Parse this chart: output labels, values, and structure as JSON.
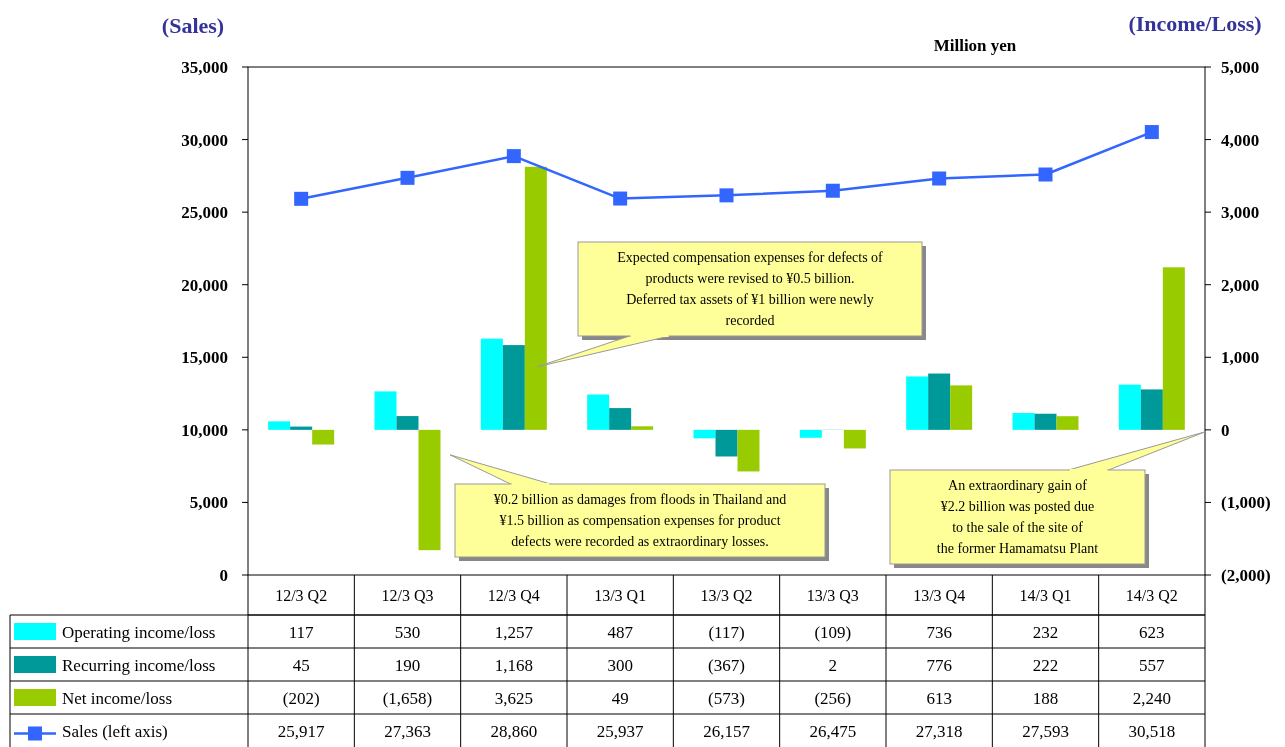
{
  "chart_data": {
    "type": "bar",
    "subtitle": "Million yen",
    "ylabel": "(Sales)",
    "y2label": "(Income/Loss)",
    "categories": [
      "12/3 Q2",
      "12/3 Q3",
      "12/3 Q4",
      "13/3 Q1",
      "13/3 Q2",
      "13/3 Q3",
      "13/3 Q4",
      "14/3 Q1",
      "14/3 Q2"
    ],
    "series": [
      {
        "name": "Operating income/loss",
        "color": "#00ffff",
        "axis": "y2",
        "values": [
          117,
          530,
          1257,
          487,
          -117,
          -109,
          736,
          232,
          623
        ],
        "value_labels": [
          "117",
          "530",
          "1,257",
          "487",
          "(117)",
          "(109)",
          "736",
          "232",
          "623"
        ]
      },
      {
        "name": "Recurring income/loss",
        "color": "#009999",
        "axis": "y2",
        "values": [
          45,
          190,
          1168,
          300,
          -367,
          2,
          776,
          222,
          557
        ],
        "value_labels": [
          "45",
          "190",
          "1,168",
          "300",
          "(367)",
          "2",
          "776",
          "222",
          "557"
        ]
      },
      {
        "name": "Net income/loss",
        "color": "#99cc00",
        "axis": "y2",
        "values": [
          -202,
          -1658,
          3625,
          49,
          -573,
          -256,
          613,
          188,
          2240
        ],
        "value_labels": [
          "(202)",
          "(1,658)",
          "3,625",
          "49",
          "(573)",
          "(256)",
          "613",
          "188",
          "2,240"
        ]
      },
      {
        "name": "Sales (left axis)",
        "color": "#3366ff",
        "type": "line",
        "marker": "square",
        "values": [
          25917,
          27363,
          28860,
          25937,
          26157,
          26475,
          27318,
          27593,
          30518
        ],
        "value_labels": [
          "25,917",
          "27,363",
          "28,860",
          "25,937",
          "26,157",
          "26,475",
          "27,318",
          "27,593",
          "30,518"
        ]
      }
    ],
    "ylim": [
      0,
      35000
    ],
    "yticks": [
      {
        "value": 0,
        "label": "0"
      },
      {
        "value": 5000,
        "label": "5,000"
      },
      {
        "value": 10000,
        "label": "10,000"
      },
      {
        "value": 15000,
        "label": "15,000"
      },
      {
        "value": 20000,
        "label": "20,000"
      },
      {
        "value": 25000,
        "label": "25,000"
      },
      {
        "value": 30000,
        "label": "30,000"
      },
      {
        "value": 35000,
        "label": "35,000"
      }
    ],
    "y2lim": [
      -2000,
      5000
    ],
    "y2ticks": [
      {
        "value": -2000,
        "label": "(2,000)"
      },
      {
        "value": -1000,
        "label": "(1,000)"
      },
      {
        "value": 0,
        "label": "0"
      },
      {
        "value": 1000,
        "label": "1,000"
      },
      {
        "value": 2000,
        "label": "2,000"
      },
      {
        "value": 3000,
        "label": "3,000"
      },
      {
        "value": 4000,
        "label": "4,000"
      },
      {
        "value": 5000,
        "label": "5,000"
      }
    ],
    "legend": "bottom",
    "annotations": [
      "Expected compensation expenses for defects of products were revised to ¥0.5 billion. Deferred tax assets of ¥1 billion were newly recorded",
      "¥0.2 billion as damages from floods in Thailand and ¥1.5 billion as compensation expenses for product defects were recorded as extraordinary losses.",
      "An extraordinary gain of ¥2.2 billion was posted due to the sale of the site of the former Hamamatsu Plant"
    ]
  }
}
